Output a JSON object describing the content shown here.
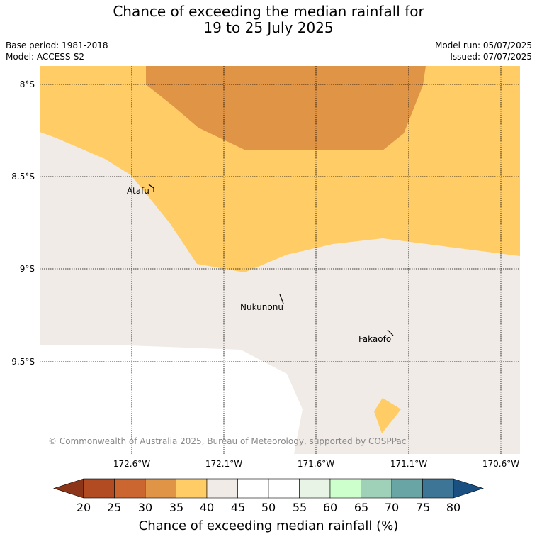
{
  "title": {
    "line1": "Chance of exceeding the median rainfall for",
    "line2": "19 to 25 July 2025"
  },
  "meta": {
    "base_period": "Base period: 1981-2018",
    "model": "Model: ACCESS-S2",
    "model_run": "Model run: 05/07/2025",
    "issued": "Issued: 07/07/2025"
  },
  "map": {
    "lat_ticks": [
      "8°S",
      "8.5°S",
      "9°S",
      "9.5°S"
    ],
    "lon_ticks": [
      "172.6°W",
      "172.1°W",
      "171.6°W",
      "171.1°W",
      "170.6°W"
    ],
    "places": [
      "Atafu",
      "Nukunonu",
      "Fakaofo"
    ],
    "copyright": "© Commonwealth of Australia 2025, Bureau of Meteorology, supported by COSPPac",
    "colors": {
      "p30_35": "#e09446",
      "p35_40": "#ffcc66",
      "p40_45": "#f0ebe6",
      "nodata": "#ffffff"
    }
  },
  "colorbar": {
    "ticks": [
      "20",
      "25",
      "30",
      "35",
      "40",
      "45",
      "50",
      "55",
      "60",
      "65",
      "70",
      "75",
      "80"
    ],
    "colors": [
      "#8c3519",
      "#b24a22",
      "#cb6631",
      "#e09446",
      "#ffcc66",
      "#f0ebe6",
      "#ffffff",
      "#ffffff",
      "#e8f4e6",
      "#ccffcc",
      "#9fd1b9",
      "#6aa5a6",
      "#3d7597",
      "#1a4f82"
    ],
    "label": "Chance of exceeding median rainfall (%)"
  }
}
